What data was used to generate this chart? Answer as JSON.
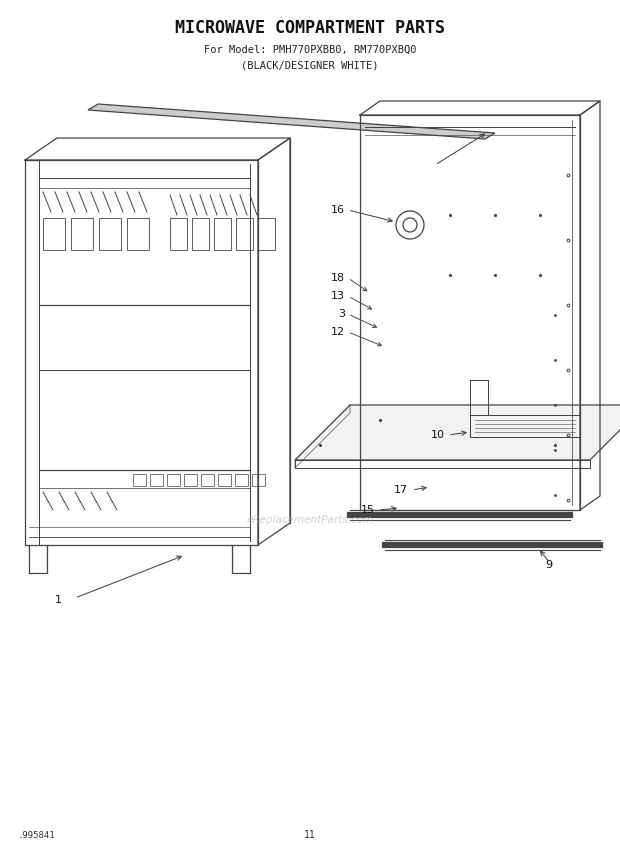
{
  "title": "MICROWAVE COMPARTMENT PARTS",
  "subtitle1": "For Model: PMH770PXBB0, RM770PXBQ0",
  "subtitle2": "(BLACK/DESIGNER WHITE)",
  "bg_color": "#ffffff",
  "diagram_color": "#444444",
  "page_number": "11",
  "doc_number": ".995841"
}
